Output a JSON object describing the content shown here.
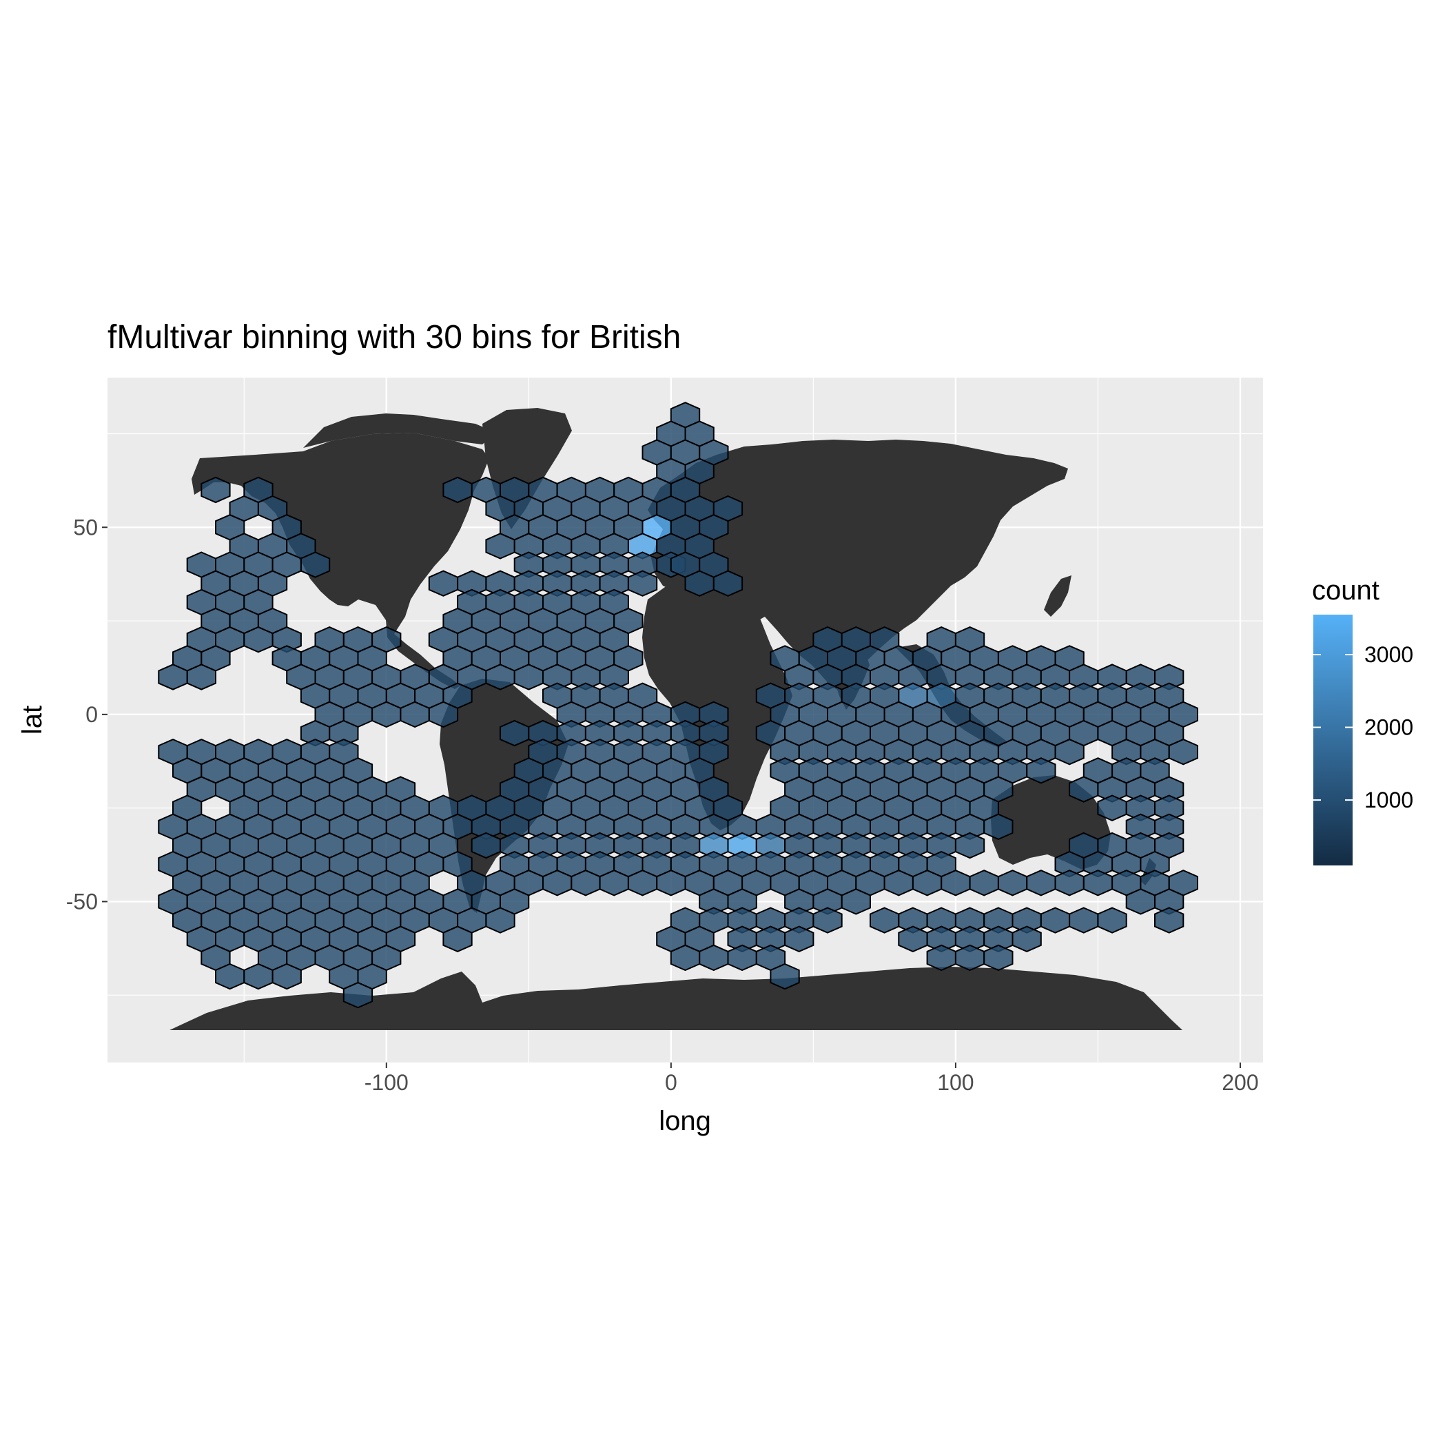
{
  "chart_data": {
    "type": "hexbin",
    "title": "fMultivar binning with 30 bins for British",
    "xlabel": "long",
    "ylabel": "lat",
    "xlim": [
      -198,
      208
    ],
    "ylim": [
      -93,
      90
    ],
    "x_ticks": [
      -100,
      0,
      100,
      200
    ],
    "x_tick_labels": [
      "-100",
      "0",
      "100",
      "200"
    ],
    "y_ticks": [
      -50,
      0,
      50
    ],
    "y_tick_labels": [
      "-50",
      "0",
      "50"
    ],
    "grid": true,
    "legend": {
      "title": "count",
      "placement": "right",
      "range": [
        100,
        3550
      ],
      "ticks": [
        1000,
        2000,
        3000
      ],
      "tick_labels": [
        "1000",
        "2000",
        "3000"
      ],
      "low_color": "#132B43",
      "high_color": "#56B1F7"
    },
    "colors": {
      "panel_background": "#EBEBEB",
      "grid_line": "#FFFFFF",
      "land": "#333333",
      "hex_outline": "#000000"
    },
    "hex_bins": {
      "dx": 10,
      "dy": 5,
      "base_count": 900,
      "ranges": [
        [
          80,
          [
            [
              5,
              5
            ]
          ]
        ],
        [
          75,
          [
            [
              0,
              15
            ]
          ]
        ],
        [
          70,
          [
            [
              -5,
              20
            ]
          ]
        ],
        [
          65,
          [
            [
              0,
              15
            ]
          ]
        ],
        [
          60,
          [
            [
              -160,
              -155
            ],
            [
              -145,
              -145
            ],
            [
              -75,
              -55
            ],
            [
              -45,
              10
            ]
          ]
        ],
        [
          55,
          [
            [
              -150,
              -140
            ],
            [
              -60,
              20
            ]
          ]
        ],
        [
          50,
          [
            [
              -155,
              -155
            ],
            [
              -135,
              -130
            ],
            [
              -55,
              20
            ]
          ]
        ],
        [
          45,
          [
            [
              -150,
              -140
            ],
            [
              -130,
              -130
            ],
            [
              -60,
              10
            ]
          ]
        ],
        [
          40,
          [
            [
              -165,
              -125
            ],
            [
              -50,
              0
            ],
            [
              5,
              15
            ]
          ]
        ],
        [
          35,
          [
            [
              -160,
              -140
            ],
            [
              -80,
              -10
            ],
            [
              10,
              20
            ]
          ]
        ],
        [
          30,
          [
            [
              -165,
              -145
            ],
            [
              -70,
              -20
            ]
          ]
        ],
        [
          25,
          [
            [
              -160,
              -140
            ],
            [
              -75,
              -15
            ]
          ]
        ],
        [
          20,
          [
            [
              -165,
              -155
            ],
            [
              -145,
              -135
            ],
            [
              -120,
              -100
            ],
            [
              -80,
              -20
            ],
            [
              55,
              75
            ],
            [
              95,
              95
            ],
            [
              105,
              105
            ]
          ]
        ],
        [
          15,
          [
            [
              -170,
              -160
            ],
            [
              -135,
              -125
            ],
            [
              -115,
              -105
            ],
            [
              -75,
              -15
            ],
            [
              40,
              140
            ]
          ]
        ],
        [
          10,
          [
            [
              -175,
              -165
            ],
            [
              -130,
              -120
            ],
            [
              -110,
              -90
            ],
            [
              -80,
              -20
            ],
            [
              45,
              155
            ],
            [
              165,
              175
            ]
          ]
        ],
        [
          5,
          [
            [
              -125,
              -95
            ],
            [
              -85,
              -75
            ],
            [
              -40,
              -10
            ],
            [
              35,
              180
            ]
          ]
        ],
        [
          0,
          [
            [
              -120,
              -100
            ],
            [
              -90,
              -80
            ],
            [
              -35,
              15
            ],
            [
              40,
              180
            ]
          ]
        ],
        [
          -5,
          [
            [
              -125,
              -115
            ],
            [
              -55,
              20
            ],
            [
              35,
              145
            ],
            [
              155,
              175
            ]
          ]
        ],
        [
          -10,
          [
            [
              -175,
              -165
            ],
            [
              -155,
              -155
            ],
            [
              -145,
              -115
            ],
            [
              -45,
              15
            ],
            [
              40,
              140
            ],
            [
              160,
              180
            ]
          ]
        ],
        [
          -15,
          [
            [
              -170,
              -140
            ],
            [
              -130,
              -110
            ],
            [
              -50,
              15
            ],
            [
              40,
              130
            ],
            [
              150,
              170
            ]
          ]
        ],
        [
          -20,
          [
            [
              -165,
              -135
            ],
            [
              -125,
              -115
            ],
            [
              -105,
              -95
            ],
            [
              -55,
              20
            ],
            [
              45,
              120
            ],
            [
              145,
              175
            ]
          ]
        ],
        [
          -25,
          [
            [
              -170,
              -170
            ],
            [
              -150,
              -130
            ],
            [
              -120,
              -110
            ],
            [
              -100,
              -80
            ],
            [
              -70,
              20
            ],
            [
              40,
              115
            ],
            [
              155,
              175
            ]
          ]
        ],
        [
          -30,
          [
            [
              -175,
              -155
            ],
            [
              -145,
              -135
            ],
            [
              -125,
              -115
            ],
            [
              -105,
              -75
            ],
            [
              -65,
              25
            ],
            [
              35,
              120
            ],
            [
              165,
              175
            ]
          ]
        ],
        [
          -35,
          [
            [
              -170,
              -75
            ],
            [
              -65,
              110
            ],
            [
              145,
              175
            ]
          ]
        ],
        [
          -40,
          [
            [
              -175,
              -145
            ],
            [
              -135,
              -125
            ],
            [
              -115,
              -105
            ],
            [
              -95,
              -75
            ],
            [
              -55,
              100
            ],
            [
              140,
              170
            ]
          ]
        ],
        [
          -45,
          [
            [
              -170,
              -140
            ],
            [
              -130,
              -90
            ],
            [
              -70,
              -70
            ],
            [
              -60,
              180
            ]
          ]
        ],
        [
          -50,
          [
            [
              -175,
              -135
            ],
            [
              -125,
              -75
            ],
            [
              -65,
              -55
            ],
            [
              15,
              25
            ],
            [
              45,
              65
            ],
            [
              165,
              175
            ]
          ]
        ],
        [
          -55,
          [
            [
              -170,
              -80
            ],
            [
              -70,
              -60
            ],
            [
              5,
              55
            ],
            [
              75,
              155
            ],
            [
              175,
              175
            ]
          ]
        ],
        [
          -60,
          [
            [
              -165,
              -145
            ],
            [
              -135,
              -95
            ],
            [
              -75,
              -75
            ],
            [
              0,
              15
            ],
            [
              25,
              35
            ],
            [
              45,
              45
            ],
            [
              85,
              125
            ]
          ]
        ],
        [
          -65,
          [
            [
              -160,
              -160
            ],
            [
              -140,
              -130
            ],
            [
              -120,
              -100
            ],
            [
              5,
              35
            ],
            [
              95,
              115
            ]
          ]
        ],
        [
          -70,
          [
            [
              -155,
              -135
            ],
            [
              -115,
              -105
            ],
            [
              40,
              40
            ]
          ]
        ],
        [
          -75,
          [
            [
              -110,
              -110
            ]
          ]
        ]
      ],
      "hotspots": [
        {
          "x": -5,
          "y": 50,
          "count": 3500
        },
        {
          "x": -10,
          "y": 45,
          "count": 3200
        },
        {
          "x": -20,
          "y": 50,
          "count": 2700
        },
        {
          "x": -5,
          "y": 55,
          "count": 2300
        },
        {
          "x": -15,
          "y": 45,
          "count": 2200
        },
        {
          "x": -25,
          "y": 45,
          "count": 2000
        },
        {
          "x": -20,
          "y": 0,
          "count": 2500
        },
        {
          "x": -25,
          "y": 5,
          "count": 2200
        },
        {
          "x": -15,
          "y": 5,
          "count": 2100
        },
        {
          "x": -10,
          "y": 0,
          "count": 1900
        },
        {
          "x": 25,
          "y": -35,
          "count": 3300
        },
        {
          "x": 15,
          "y": -35,
          "count": 2600
        },
        {
          "x": 20,
          "y": -40,
          "count": 2300
        },
        {
          "x": 30,
          "y": -40,
          "count": 2100
        },
        {
          "x": 40,
          "y": -30,
          "count": 2000
        },
        {
          "x": 35,
          "y": -35,
          "count": 2000
        },
        {
          "x": 85,
          "y": 5,
          "count": 1800
        },
        {
          "x": 95,
          "y": 5,
          "count": 1700
        }
      ]
    }
  }
}
